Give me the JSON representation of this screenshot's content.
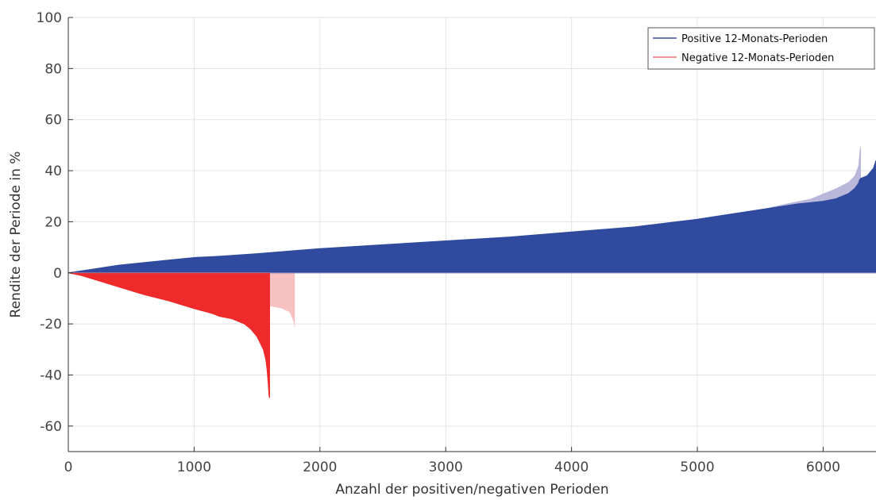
{
  "chart_data": {
    "type": "area",
    "title": "",
    "xlabel": "Anzahl der positiven/negativen Perioden",
    "ylabel": "Rendite der Periode in %",
    "xlim": [
      0,
      6420
    ],
    "ylim": [
      -70,
      100
    ],
    "xticks": [
      0,
      1000,
      2000,
      3000,
      4000,
      5000,
      6000
    ],
    "yticks": [
      100,
      80,
      60,
      40,
      20,
      0,
      -20,
      -40,
      -60
    ],
    "grid": true,
    "legend": {
      "position": "top-right",
      "entries": [
        {
          "label": "Positive 12-Monats-Perioden",
          "color": "#3a4fa3"
        },
        {
          "label": "Negative 12-Monats-Perioden",
          "color": "#f07070"
        }
      ]
    },
    "series": [
      {
        "name": "Positive 12-Monats-Perioden",
        "color": "#2f4a9e",
        "x": [
          0,
          200,
          400,
          600,
          800,
          1000,
          1200,
          1500,
          2000,
          2500,
          3000,
          3500,
          4000,
          4500,
          5000,
          5400,
          5800,
          6000,
          6100,
          6200,
          6250,
          6280,
          6290,
          6300,
          6350,
          6400,
          6420
        ],
        "values": [
          0,
          1.5,
          3,
          4,
          5,
          6,
          6.5,
          7.5,
          9.5,
          11,
          12.5,
          14,
          16,
          18,
          21,
          24,
          27,
          28,
          29,
          31,
          33,
          35,
          36.5,
          37,
          38,
          41,
          44
        ]
      },
      {
        "name": "Negative 12-Monats-Perioden",
        "color": "#ee2a2a",
        "x": [
          0,
          100,
          200,
          400,
          600,
          800,
          1000,
          1150,
          1200,
          1300,
          1400,
          1450,
          1500,
          1550,
          1570,
          1580,
          1590,
          1595,
          1600
        ],
        "values": [
          0,
          -1,
          -2.5,
          -5.5,
          -8.5,
          -11,
          -14,
          -16,
          -17,
          -18,
          -20,
          -22,
          -25,
          -30,
          -34,
          -38,
          -44,
          -48,
          -49
        ]
      }
    ],
    "envelopes": [
      {
        "of": "Positive 12-Monats-Perioden",
        "color": "#b9b7da",
        "x": [
          0,
          200,
          400,
          600,
          800,
          1000,
          1200,
          1500,
          2000,
          2500,
          3000,
          3500,
          4000,
          4500,
          5000,
          5400,
          5700,
          5900,
          6000,
          6100,
          6200,
          6250,
          6280,
          6290,
          6300
        ],
        "values": [
          0,
          1.5,
          3,
          4,
          5,
          6,
          6.5,
          7.5,
          9.5,
          11,
          12.5,
          14,
          15.5,
          17.5,
          20.5,
          23.5,
          27,
          29,
          31,
          33,
          35.5,
          38,
          42,
          48,
          50
        ]
      },
      {
        "of": "Negative 12-Monats-Perioden",
        "color": "#f7c1c2",
        "x": [
          0,
          300,
          600,
          900,
          1200,
          1500,
          1600,
          1700,
          1760,
          1790,
          1800
        ],
        "values": [
          0,
          -3,
          -6,
          -9,
          -11,
          -12,
          -13,
          -14,
          -15.5,
          -19,
          -22
        ]
      }
    ]
  }
}
